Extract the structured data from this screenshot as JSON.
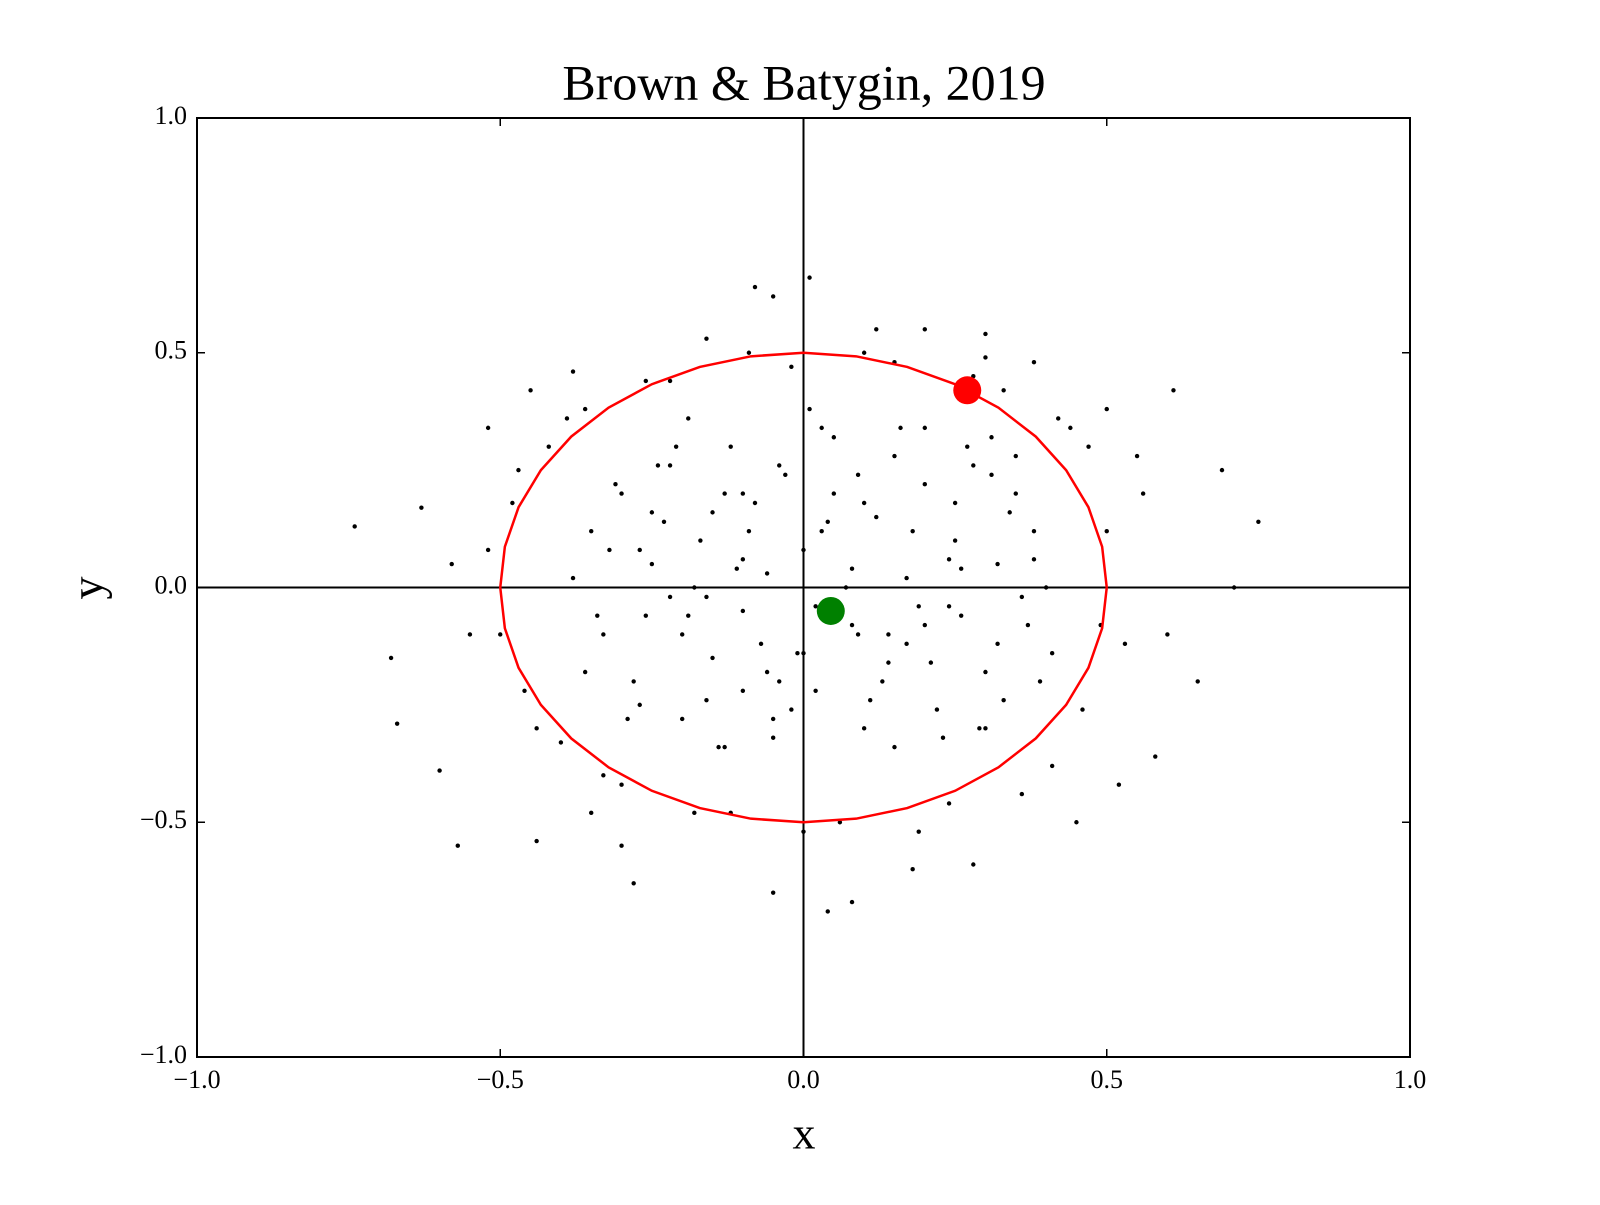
{
  "chart_data": {
    "type": "scatter",
    "title": "Brown & Batygin, 2019",
    "x_label": "x",
    "y_label": "y",
    "xlim": [
      -1.0,
      1.0
    ],
    "ylim": [
      -1.0,
      1.0
    ],
    "xticks": [
      {
        "value": -1.0,
        "label": "−1.0"
      },
      {
        "value": -0.5,
        "label": "−0.5"
      },
      {
        "value": 0,
        "label": "0.0"
      },
      {
        "value": 0.5,
        "label": "0.5"
      },
      {
        "value": 1.0,
        "label": "1.0"
      }
    ],
    "yticks": [
      {
        "value": -1.0,
        "label": "−1.0"
      },
      {
        "value": -0.5,
        "label": "−0.5"
      },
      {
        "value": 0,
        "label": "0.0"
      },
      {
        "value": 0.5,
        "label": "0.5"
      },
      {
        "value": 1.0,
        "label": "1.0"
      }
    ],
    "zero_lines": true,
    "series": [
      {
        "kind": "points",
        "color": "#000000",
        "marker_size": 2.2,
        "x": [
          -0.74,
          -0.68,
          -0.67,
          -0.6,
          -0.57,
          -0.52,
          -0.45,
          -0.38,
          -0.16,
          -0.08,
          -0.05,
          0.01,
          0.12,
          0.2,
          0.3,
          0.38,
          0.61,
          0.69,
          0.75,
          0.71,
          0.65,
          0.58,
          0.45,
          0.28,
          0.08,
          0.04,
          -0.05,
          -0.28,
          -0.44,
          -0.63,
          -0.55,
          0.55,
          0.6,
          0.5,
          -0.3,
          0.18,
          -0.58,
          0.52,
          -0.48,
          -0.46,
          -0.42,
          -0.4,
          -0.36,
          -0.3,
          -0.22,
          -0.12,
          -0.02,
          0.06,
          0.15,
          0.24,
          0.33,
          0.41,
          0.47,
          0.5,
          0.49,
          0.46,
          0.42,
          0.36,
          0.28,
          0.19,
          0.1,
          0.0,
          -0.09,
          -0.18,
          -0.26,
          -0.33,
          -0.39,
          -0.44,
          -0.47,
          -0.5,
          0.53,
          0.56,
          -0.52,
          0.44,
          -0.35,
          0.3,
          -0.38,
          -0.35,
          -0.33,
          -0.3,
          -0.28,
          -0.25,
          -0.22,
          -0.2,
          -0.17,
          -0.15,
          -0.12,
          -0.1,
          -0.08,
          -0.05,
          -0.03,
          0.0,
          0.02,
          0.05,
          0.07,
          0.1,
          0.12,
          0.15,
          0.17,
          0.2,
          0.22,
          0.25,
          0.27,
          0.3,
          0.32,
          0.35,
          0.37,
          0.4,
          -0.36,
          -0.31,
          -0.27,
          -0.23,
          -0.19,
          -0.14,
          -0.1,
          -0.06,
          -0.01,
          0.03,
          0.08,
          0.13,
          0.18,
          0.23,
          0.28,
          0.33,
          0.38,
          0.41,
          -0.32,
          -0.26,
          -0.21,
          -0.16,
          -0.11,
          -0.07,
          -0.02,
          0.04,
          0.09,
          0.14,
          0.19,
          0.24,
          0.29,
          0.34,
          0.39,
          -0.29,
          -0.24,
          -0.18,
          -0.13,
          -0.09,
          -0.04,
          0.01,
          0.06,
          0.11,
          0.16,
          0.21,
          0.26,
          0.31,
          0.36,
          -0.25,
          -0.2,
          -0.15,
          -0.1,
          -0.05,
          0.0,
          0.05,
          0.1,
          0.15,
          0.2,
          0.25,
          0.3,
          0.35,
          -0.22,
          -0.16,
          -0.1,
          -0.04,
          0.02,
          0.08,
          0.14,
          0.2,
          0.26,
          0.32,
          -0.34,
          -0.27,
          -0.19,
          -0.13,
          -0.06,
          0.03,
          0.09,
          0.17,
          0.24,
          0.31,
          0.38
        ],
        "y": [
          0.13,
          -0.15,
          -0.29,
          -0.39,
          -0.55,
          0.34,
          0.42,
          0.46,
          0.53,
          0.64,
          0.62,
          0.66,
          0.55,
          0.55,
          0.54,
          0.48,
          0.42,
          0.25,
          0.14,
          0.0,
          -0.2,
          -0.36,
          -0.5,
          -0.59,
          -0.67,
          -0.69,
          -0.65,
          -0.63,
          -0.54,
          0.17,
          -0.1,
          0.28,
          -0.1,
          0.38,
          -0.55,
          -0.6,
          0.05,
          -0.42,
          0.18,
          -0.22,
          0.3,
          -0.33,
          0.38,
          -0.42,
          0.44,
          -0.48,
          0.47,
          -0.5,
          0.48,
          -0.46,
          0.42,
          -0.38,
          0.3,
          0.12,
          -0.08,
          -0.26,
          0.36,
          -0.44,
          0.45,
          -0.52,
          0.5,
          -0.52,
          0.5,
          -0.48,
          0.44,
          -0.4,
          0.36,
          -0.3,
          0.25,
          -0.1,
          -0.12,
          0.2,
          0.08,
          0.34,
          -0.48,
          0.49,
          0.02,
          0.12,
          -0.1,
          0.2,
          -0.2,
          0.05,
          0.26,
          -0.28,
          0.1,
          -0.15,
          0.3,
          -0.05,
          0.18,
          -0.32,
          0.24,
          0.08,
          -0.22,
          0.32,
          0.0,
          -0.3,
          0.15,
          0.28,
          -0.12,
          0.22,
          -0.26,
          0.1,
          0.3,
          -0.18,
          0.05,
          0.2,
          -0.08,
          0.0,
          -0.18,
          0.22,
          -0.25,
          0.14,
          -0.06,
          -0.34,
          0.2,
          0.03,
          -0.14,
          0.34,
          -0.08,
          -0.2,
          0.12,
          -0.32,
          0.26,
          -0.24,
          0.12,
          -0.14,
          0.08,
          -0.06,
          0.3,
          -0.24,
          0.04,
          -0.12,
          -0.26,
          0.14,
          0.24,
          -0.1,
          -0.04,
          0.06,
          -0.3,
          0.16,
          -0.2,
          -0.28,
          0.26,
          0.0,
          -0.34,
          0.12,
          -0.2,
          0.38,
          -0.04,
          -0.24,
          0.34,
          -0.16,
          -0.06,
          0.24,
          -0.02,
          0.16,
          -0.1,
          0.16,
          0.06,
          -0.28,
          -0.14,
          0.2,
          0.18,
          -0.34,
          -0.08,
          0.18,
          -0.3,
          0.28,
          -0.02,
          -0.02,
          -0.22,
          0.26,
          -0.04,
          0.04,
          -0.16,
          0.34,
          0.04,
          -0.12,
          -0.06,
          0.08,
          0.36,
          0.2,
          -0.18,
          0.12,
          -0.1,
          0.02,
          -0.04,
          0.32,
          0.06
        ]
      },
      {
        "kind": "line",
        "color": "#ff0000",
        "x": [
          0.5,
          0.4924,
          0.4698,
          0.433,
          0.383,
          0.3214,
          0.25,
          0.171,
          0.0868,
          0,
          -0.0868,
          -0.171,
          -0.25,
          -0.3214,
          -0.383,
          -0.433,
          -0.4698,
          -0.4924,
          -0.5,
          -0.4924,
          -0.4698,
          -0.433,
          -0.383,
          -0.3214,
          -0.25,
          -0.171,
          -0.0868,
          0,
          0.0868,
          0.171,
          0.25,
          0.3214,
          0.383,
          0.433,
          0.4698,
          0.4924,
          0.5
        ],
        "y": [
          0,
          0.0868,
          0.171,
          0.25,
          0.3214,
          0.383,
          0.433,
          0.4698,
          0.4924,
          0.5,
          0.4924,
          0.4698,
          0.433,
          0.383,
          0.3214,
          0.25,
          0.171,
          0.0868,
          0,
          -0.0868,
          -0.171,
          -0.25,
          -0.3214,
          -0.383,
          -0.433,
          -0.4698,
          -0.4924,
          -0.5,
          -0.4924,
          -0.4698,
          -0.433,
          -0.383,
          -0.3214,
          -0.25,
          -0.171,
          -0.0868,
          0
        ]
      },
      {
        "kind": "points",
        "color": "#ff0000",
        "marker_size": 14,
        "x": [
          0.27
        ],
        "y": [
          0.42
        ]
      },
      {
        "kind": "points",
        "color": "#008000",
        "marker_size": 14,
        "x": [
          0.045
        ],
        "y": [
          -0.05
        ]
      }
    ]
  }
}
